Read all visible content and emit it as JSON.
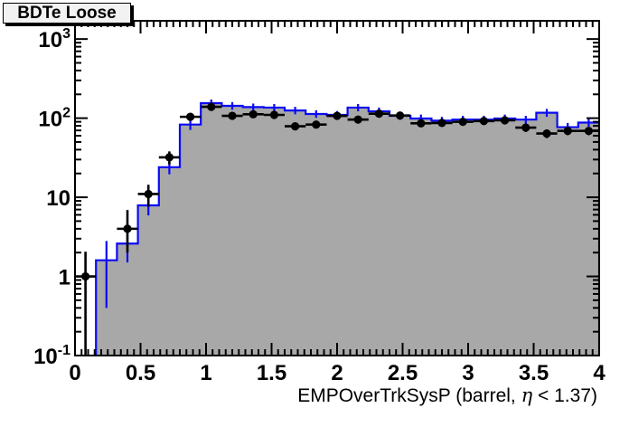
{
  "chart_data": {
    "type": "bar",
    "subtype": "root-log-histogram-with-data-points",
    "title": "BDTe Loose",
    "xlabel": "EMPOverTrkSysP (barrel,  η < 1.37)",
    "ylabel": "",
    "x_range": [
      0,
      4
    ],
    "y_range": [
      0.1,
      1700
    ],
    "y_scale": "log",
    "grid": false,
    "legend": "none",
    "n_bins": 25,
    "bin_width": 0.16,
    "x_major_ticks": [
      0,
      0.5,
      1,
      1.5,
      2,
      2.5,
      3,
      3.5,
      4
    ],
    "x_tick_labels": [
      "0",
      "0.5",
      "1",
      "1.5",
      "2",
      "2.5",
      "3",
      "3.5",
      "4"
    ],
    "x_minor_tick_step": 0.05,
    "y_major_ticks": [
      0.1,
      1,
      10,
      100,
      1000
    ],
    "y_tick_labels": [
      {
        "base": "10",
        "sup": "-1"
      },
      {
        "base": "1",
        "sup": ""
      },
      {
        "base": "10",
        "sup": ""
      },
      {
        "base": "10",
        "sup": "2"
      },
      {
        "base": "10",
        "sup": "3"
      }
    ],
    "colors": {
      "histogram_fill": "#a8a8a8",
      "histogram_line": "#0a0af5",
      "marker": "#000000",
      "frame": "#000000",
      "title_box_fill": "#f2f2f2"
    },
    "series": [
      {
        "name": "mc-filled-histogram",
        "style": "step-filled",
        "bin_centers": [
          0.08,
          0.24,
          0.4,
          0.56,
          0.72,
          0.88,
          1.04,
          1.2,
          1.36,
          1.52,
          1.68,
          1.84,
          2.0,
          2.16,
          2.32,
          2.48,
          2.64,
          2.8,
          2.96,
          3.12,
          3.28,
          3.44,
          3.6,
          3.76,
          3.92
        ],
        "values": [
          0,
          1.6,
          2.6,
          7.9,
          24,
          83,
          155,
          143,
          138,
          136,
          125,
          113,
          110,
          136,
          122,
          107,
          99,
          93,
          96,
          96,
          99,
          96,
          117,
          77,
          88
        ],
        "err_lo": [
          0,
          0.4,
          1.5,
          5.9,
          19.5,
          71,
          139,
          128,
          124,
          122,
          112,
          101,
          98,
          122,
          109,
          95,
          88,
          82,
          85,
          85,
          88,
          85,
          104,
          68,
          78
        ],
        "err_hi": [
          0,
          2.8,
          4.4,
          10.5,
          29.5,
          97,
          172,
          159,
          153,
          151,
          139,
          126,
          123,
          151,
          136,
          120,
          111,
          104,
          107,
          107,
          111,
          107,
          131,
          87,
          99
        ]
      },
      {
        "name": "data-points",
        "style": "marker-errorbar",
        "x_half_width": 0.08,
        "points": [
          [
            0.08,
            1.0,
            0.05,
            2.05
          ],
          [
            0.4,
            4.0,
            2.0,
            6.9
          ],
          [
            0.56,
            11,
            7.6,
            14.4
          ],
          [
            0.72,
            32,
            26,
            38
          ],
          [
            0.88,
            104,
            94,
            114
          ],
          [
            1.04,
            139,
            127,
            151
          ],
          [
            1.2,
            107,
            97,
            117
          ],
          [
            1.36,
            112,
            101,
            123
          ],
          [
            1.52,
            110,
            100,
            120
          ],
          [
            1.68,
            79,
            70,
            88
          ],
          [
            1.84,
            83,
            74,
            92
          ],
          [
            2.0,
            107,
            97,
            117
          ],
          [
            2.16,
            96,
            86,
            106
          ],
          [
            2.32,
            114,
            103,
            125
          ],
          [
            2.48,
            108,
            98,
            118
          ],
          [
            2.64,
            86,
            77,
            95
          ],
          [
            2.8,
            87,
            78,
            96
          ],
          [
            2.96,
            90,
            81,
            99
          ],
          [
            3.12,
            92,
            82,
            102
          ],
          [
            3.28,
            94,
            84,
            104
          ],
          [
            3.44,
            76,
            67,
            85
          ],
          [
            3.6,
            64,
            56,
            72
          ],
          [
            3.76,
            69,
            61,
            77
          ],
          [
            3.92,
            69,
            61,
            77
          ]
        ]
      }
    ]
  }
}
